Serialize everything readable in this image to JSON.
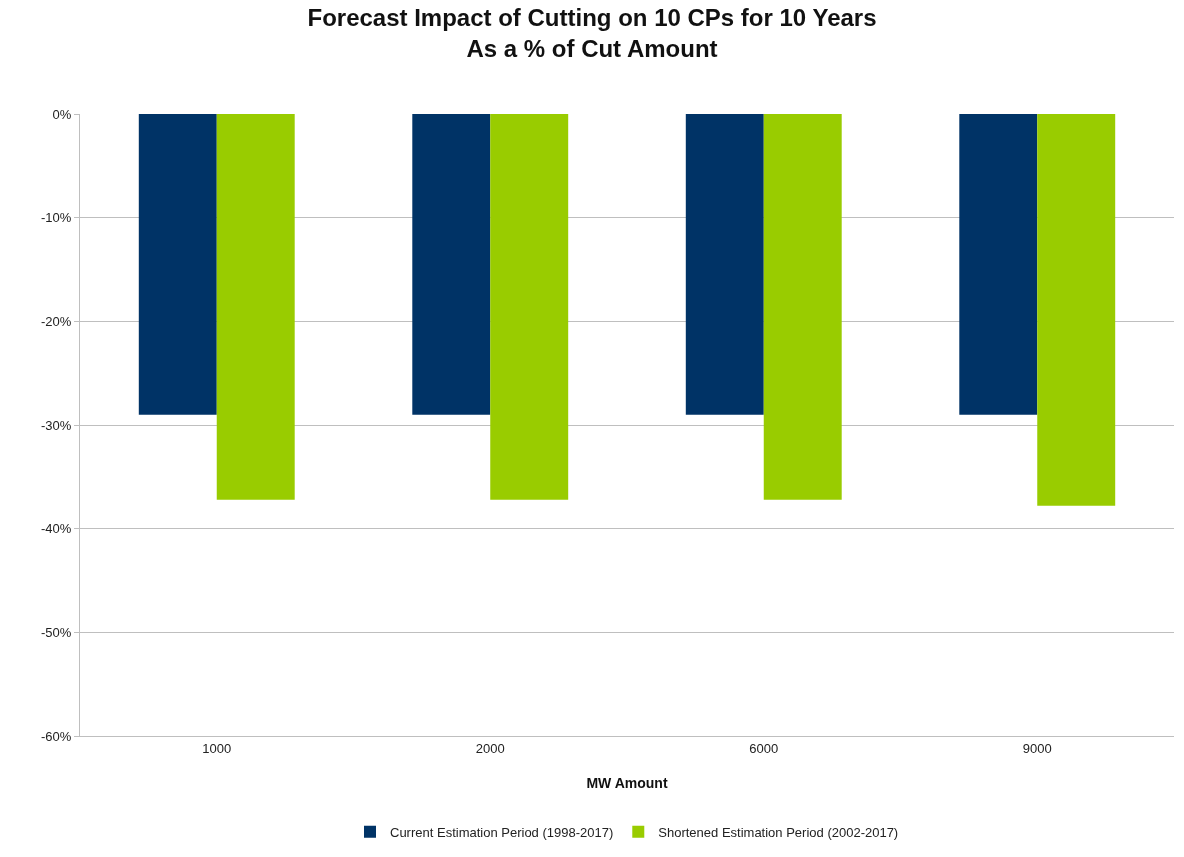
{
  "chart_data": {
    "type": "bar",
    "title": "Forecast Impact of Cutting on 10 CPs for 10 Years\nAs a % of Cut Amount",
    "xlabel": "MW Amount",
    "categories": [
      "1000",
      "2000",
      "6000",
      "9000"
    ],
    "series": [
      {
        "name": "Current Estimation Period (1998-2017)",
        "color": "#003366",
        "values": [
          -29.0,
          -29.0,
          -29.0,
          -29.0
        ]
      },
      {
        "name": "Shortened Estimation Period (2002-2017)",
        "color": "#99cc00",
        "values": [
          -37.2,
          -37.2,
          -37.2,
          -37.8
        ]
      }
    ],
    "ylim": [
      -60,
      0
    ],
    "yticks": [
      {
        "value": -60,
        "label": "-60%"
      },
      {
        "value": -50,
        "label": "-50%"
      },
      {
        "value": -40,
        "label": "-40%"
      },
      {
        "value": -30,
        "label": "-30%"
      },
      {
        "value": -20,
        "label": "-20%"
      },
      {
        "value": -10,
        "label": "-10%"
      },
      {
        "value": 0,
        "label": "0%"
      }
    ],
    "grid": "y",
    "legend": "bottom"
  }
}
